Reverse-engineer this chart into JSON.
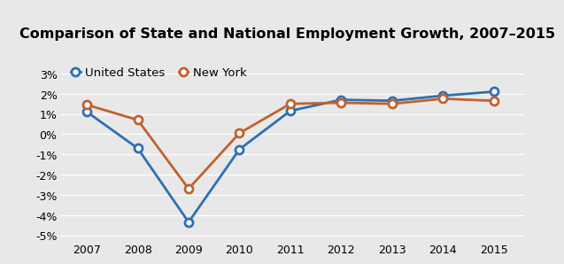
{
  "title": "Comparison of State and National Employment Growth, 2007–2015",
  "years": [
    2007,
    2008,
    2009,
    2010,
    2011,
    2012,
    2013,
    2014,
    2015
  ],
  "us_values": [
    1.1,
    -0.7,
    -4.35,
    -0.75,
    1.15,
    1.7,
    1.65,
    1.9,
    2.1
  ],
  "ny_values": [
    1.45,
    0.7,
    -2.7,
    0.05,
    1.5,
    1.55,
    1.5,
    1.75,
    1.65
  ],
  "us_color": "#2f6eb5",
  "ny_color": "#c0622e",
  "us_label": "United States",
  "ny_label": "New York",
  "ylim": [
    -5.2,
    3.8
  ],
  "yticks": [
    -5,
    -4,
    -3,
    -2,
    -1,
    0,
    1,
    2,
    3
  ],
  "header_color": "#d4d4d4",
  "plot_background": "#e8e8e8",
  "title_fontsize": 11.5,
  "legend_fontsize": 9.5,
  "tick_fontsize": 9,
  "line_width": 2.0,
  "marker_size": 6.5,
  "grid_color": "#ffffff"
}
